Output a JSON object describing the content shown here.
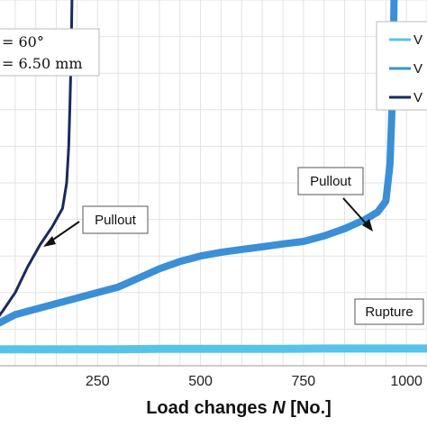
{
  "chart_data": {
    "type": "line",
    "xlabel_prefix": "Load changes ",
    "xlabel_var": "N",
    "xlabel_suffix": " [No.]",
    "xlim": [
      0,
      1050
    ],
    "ylim": [
      0,
      1
    ],
    "x_ticks": [
      250,
      500,
      750,
      1000
    ],
    "grid": true,
    "legend_position": "top-right",
    "parameters": [
      "= 60°",
      "= 6.50 mm"
    ],
    "series": [
      {
        "name": "V",
        "color": "#56c3e8",
        "x": [
          0,
          100,
          200,
          300,
          400,
          500,
          600,
          700,
          800,
          900,
          1000,
          1050
        ],
        "y": [
          0.045,
          0.045,
          0.045,
          0.045,
          0.046,
          0.046,
          0.046,
          0.046,
          0.047,
          0.047,
          0.047,
          0.047
        ]
      },
      {
        "name": "V",
        "color": "#3a8fd6",
        "x": [
          0,
          50,
          100,
          150,
          200,
          250,
          300,
          350,
          400,
          450,
          500,
          550,
          600,
          650,
          700,
          750,
          800,
          850,
          900,
          930,
          950,
          960,
          965,
          968,
          970
        ],
        "y": [
          0.11,
          0.14,
          0.155,
          0.17,
          0.185,
          0.2,
          0.215,
          0.24,
          0.265,
          0.285,
          0.3,
          0.31,
          0.318,
          0.325,
          0.333,
          0.34,
          0.355,
          0.375,
          0.4,
          0.42,
          0.45,
          0.55,
          0.7,
          0.85,
          1.0
        ]
      },
      {
        "name": "V",
        "color": "#1a2a5e",
        "x": [
          0,
          20,
          50,
          80,
          110,
          140,
          165,
          175,
          180,
          183,
          186,
          188
        ],
        "y": [
          0.12,
          0.15,
          0.2,
          0.27,
          0.33,
          0.38,
          0.43,
          0.5,
          0.6,
          0.72,
          0.85,
          1.0
        ]
      }
    ],
    "annotations": [
      {
        "text": "Pullout",
        "x": 145,
        "y": 0.44,
        "box_offset": [
          115,
          0.57
        ]
      },
      {
        "text": "Pullout",
        "x": 950,
        "y": 0.46,
        "box_offset": [
          850,
          0.62
        ]
      },
      {
        "text": "Rupture"
      }
    ]
  }
}
